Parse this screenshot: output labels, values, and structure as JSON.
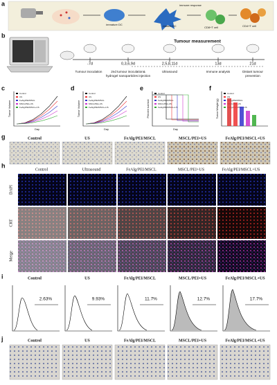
{
  "panel_a": {
    "letter": "a",
    "labels": [
      "immature DC",
      "mature DC",
      "immune response",
      "CD8+T cell",
      "CD4+T cell"
    ]
  },
  "panel_b": {
    "letter": "b",
    "days": [
      "-7d",
      "0,3,6,9d",
      "2,5,8,11d",
      "13d",
      "21d"
    ],
    "measurement": "Tumour measurement",
    "steps": [
      "Tumour inoculation",
      "2nd tumour inoculation& hydrogel nanoparticles injection",
      "Ultrasound",
      "Immune analysis",
      "Distant tumour prevention"
    ]
  },
  "panel_c": {
    "letter": "c",
    "ylabel": "Tumor Volume",
    "xlabel": "Day",
    "legend": [
      "Control",
      "US",
      "FeAlg/PEI/MSCL",
      "MSCL/PEI+US",
      "FeAlg/PEI/MSCL+US"
    ]
  },
  "panel_d": {
    "letter": "d",
    "ylabel": "Tumor Volume",
    "xlabel": "Day",
    "legend": [
      "Control",
      "US",
      "FeAlg/PEI/MSCL",
      "MSCL/PEI+US",
      "FeAlg/PEI/MSCL+US"
    ]
  },
  "panel_e": {
    "letter": "e",
    "ylabel": "Percent survival",
    "xlabel": "Day",
    "legend": [
      "Control",
      "US",
      "FeAlg/PEI/MSCL",
      "MSCL/PEI+US",
      "FeAlg/PEI/MSCL+US"
    ]
  },
  "panel_f": {
    "letter": "f",
    "ylabel": "Tumor Weight (g)",
    "legend": [
      "Control",
      "US",
      "FeAlg/PEI/MSCL",
      "MSCL/PEI+US",
      "FeAlg/PEI/MSCL+US"
    ]
  },
  "panel_g": {
    "letter": "g",
    "columns": [
      "Control",
      "US",
      "FeAlg/PEI/MSCL",
      "MSCL/PEI+US",
      "FeAlg/PEI/MSCL+US"
    ]
  },
  "panel_h": {
    "letter": "h",
    "columns": [
      "Control",
      "Ultrasound",
      "FeAlg/PEI/MSCL",
      "MSCL/PEI+US",
      "FeAlg/PEI/MSCL+US"
    ],
    "rows": [
      "DAPI",
      "CRT",
      "Merge"
    ]
  },
  "panel_i": {
    "letter": "i",
    "columns": [
      "Control",
      "US",
      "FeAlg/PEI/MSCL",
      "MSCL/PEI+US",
      "FeAlg/PEI/MSCL+US"
    ],
    "percentages": [
      "2.63%",
      "9.93%",
      "11.7%",
      "12.7%",
      "17.7%"
    ]
  },
  "panel_j": {
    "letter": "j",
    "columns": [
      "Control",
      "US",
      "FeAlg/PEI/MSCL",
      "MSCL/PEI+US",
      "FeAlg/PEI/MSCL+US"
    ]
  }
}
